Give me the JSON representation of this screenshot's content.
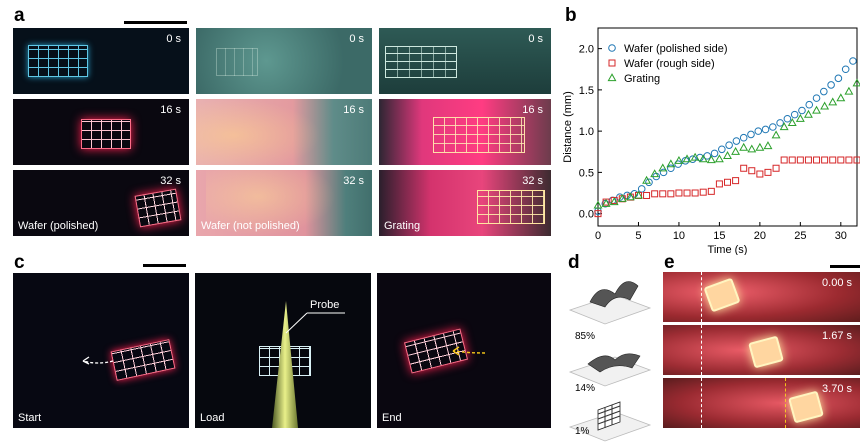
{
  "panel_a": {
    "letter": "a",
    "rows": [
      {
        "times": [
          "0 s",
          "0 s",
          "0 s"
        ]
      },
      {
        "times": [
          "16 s",
          "16 s",
          "16 s"
        ]
      },
      {
        "times": [
          "32 s",
          "32 s",
          "32 s"
        ]
      }
    ],
    "labels": [
      "Wafer (polished)",
      "Wafer (not polished)",
      "Grating"
    ]
  },
  "panel_b": {
    "letter": "b"
  },
  "panel_c": {
    "letter": "c",
    "labels": [
      "Start",
      "Load",
      "End"
    ],
    "probe_label": "Probe"
  },
  "panel_d": {
    "letter": "d",
    "percents": [
      "85%",
      "14%",
      "1%"
    ]
  },
  "panel_e": {
    "letter": "e",
    "times": [
      "0.00 s",
      "1.67 s",
      "3.70 s"
    ]
  },
  "chart_data": {
    "type": "scatter",
    "xlabel": "Time (s)",
    "ylabel": "Distance (mm)",
    "xlim": [
      0,
      32
    ],
    "ylim": [
      -0.15,
      2.25
    ],
    "xticks": [
      0,
      5,
      10,
      15,
      20,
      25,
      30
    ],
    "yticks": [
      0.0,
      0.5,
      1.0,
      1.5,
      2.0
    ],
    "ytick_labels": [
      "0.0",
      "0.5",
      "1.0",
      "1.5",
      "2.0"
    ],
    "legend_placement": "top-left",
    "series": [
      {
        "name": "Wafer (polished side)",
        "marker": "circle",
        "color": "#1f77b4",
        "x": [
          0,
          0.9,
          1.8,
          2.7,
          3.6,
          4.5,
          5.4,
          6.3,
          7.2,
          8.1,
          9.0,
          9.9,
          10.8,
          11.7,
          12.6,
          13.5,
          14.4,
          15.3,
          16.2,
          17.1,
          18.0,
          18.9,
          19.8,
          20.7,
          21.6,
          22.5,
          23.4,
          24.3,
          25.2,
          26.1,
          27.0,
          27.9,
          28.8,
          29.7,
          30.6,
          31.5
        ],
        "y": [
          0.03,
          0.12,
          0.16,
          0.2,
          0.22,
          0.24,
          0.3,
          0.38,
          0.45,
          0.5,
          0.55,
          0.6,
          0.64,
          0.66,
          0.68,
          0.7,
          0.73,
          0.78,
          0.83,
          0.88,
          0.92,
          0.96,
          1.0,
          1.02,
          1.05,
          1.1,
          1.15,
          1.2,
          1.25,
          1.32,
          1.4,
          1.48,
          1.56,
          1.64,
          1.75,
          1.85
        ]
      },
      {
        "name": "Wafer (rough side)",
        "marker": "square",
        "color": "#d62728",
        "x": [
          0,
          1,
          2,
          3,
          4,
          5,
          6,
          7,
          8,
          9,
          10,
          11,
          12,
          13,
          14,
          15,
          16,
          17,
          18,
          19,
          20,
          21,
          22,
          23,
          24,
          25,
          26,
          27,
          28,
          29,
          30,
          31,
          32
        ],
        "y": [
          0.0,
          0.14,
          0.16,
          0.18,
          0.2,
          0.22,
          0.22,
          0.24,
          0.24,
          0.24,
          0.25,
          0.25,
          0.25,
          0.26,
          0.27,
          0.36,
          0.38,
          0.4,
          0.55,
          0.52,
          0.48,
          0.5,
          0.55,
          0.65,
          0.65,
          0.65,
          0.65,
          0.65,
          0.65,
          0.65,
          0.65,
          0.65,
          0.65
        ]
      },
      {
        "name": "Grating",
        "marker": "triangle",
        "color": "#2ca02c",
        "x": [
          0,
          1,
          2,
          3,
          4,
          5,
          6,
          7,
          8,
          9,
          10,
          11,
          12,
          13,
          14,
          15,
          16,
          17,
          18,
          19,
          20,
          21,
          22,
          23,
          24,
          25,
          26,
          27,
          28,
          29,
          30,
          31,
          32
        ],
        "y": [
          0.1,
          0.12,
          0.14,
          0.18,
          0.2,
          0.22,
          0.4,
          0.48,
          0.55,
          0.6,
          0.64,
          0.66,
          0.68,
          0.66,
          0.65,
          0.66,
          0.7,
          0.75,
          0.8,
          0.78,
          0.8,
          0.82,
          0.95,
          1.05,
          1.1,
          1.15,
          1.2,
          1.25,
          1.3,
          1.35,
          1.4,
          1.48,
          1.58
        ]
      }
    ]
  }
}
